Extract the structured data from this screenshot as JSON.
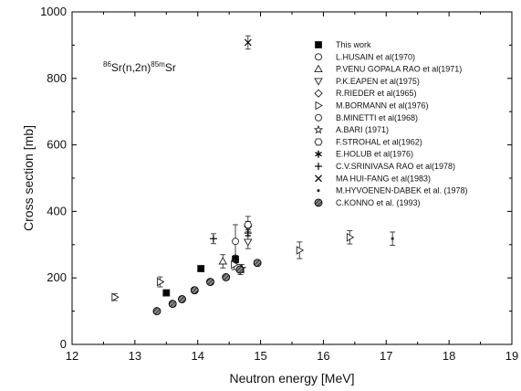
{
  "chart_data": {
    "type": "scatter",
    "title": "",
    "xlabel": "Neutron energy [MeV]",
    "ylabel": "Cross section [mb]",
    "xlim": [
      12,
      19
    ],
    "ylim": [
      0,
      1000
    ],
    "xticks": [
      12,
      13,
      14,
      15,
      16,
      17,
      18,
      19
    ],
    "xtick_labels": [
      "12",
      "13",
      "14",
      "15",
      "16",
      "17",
      "18",
      "19"
    ],
    "yticks": [
      0,
      200,
      400,
      600,
      800,
      1000
    ],
    "ytick_labels": [
      "0",
      "200",
      "400",
      "600",
      "800",
      "1000"
    ],
    "grid": false,
    "legend_position": "top-right",
    "annotation": {
      "mass_a": "86",
      "mass_b": "85m",
      "reaction_a": "Sr(n,2n)",
      "reaction_b": "Sr"
    },
    "series": [
      {
        "name": "This work",
        "marker": "filled-square",
        "points": [
          {
            "x": 13.5,
            "y": 155,
            "err": 5
          },
          {
            "x": 14.05,
            "y": 228,
            "err": 8
          },
          {
            "x": 14.6,
            "y": 255,
            "err": 10
          }
        ]
      },
      {
        "name": "L.HUSAIN et al(1970)",
        "marker": "circle",
        "points": [
          {
            "x": 14.68,
            "y": 225,
            "err": 15
          }
        ]
      },
      {
        "name": "P.VENU GOPALA RAO et al(1971)",
        "marker": "triangle-up",
        "points": [
          {
            "x": 14.4,
            "y": 250,
            "err": 20
          }
        ]
      },
      {
        "name": "P.K.EAPEN et al(1975)",
        "marker": "triangle-down",
        "points": [
          {
            "x": 14.8,
            "y": 308,
            "err": 20
          }
        ]
      },
      {
        "name": "R.RIEDER et al(1965)",
        "marker": "diamond",
        "points": [
          {
            "x": 14.8,
            "y": 355,
            "err": 15
          }
        ]
      },
      {
        "name": "M.BORMANN et al(1976)",
        "marker": "triangle-right",
        "points": [
          {
            "x": 12.68,
            "y": 142,
            "err": 10
          },
          {
            "x": 13.4,
            "y": 188,
            "err": 15
          },
          {
            "x": 14.58,
            "y": 240,
            "err": 15
          },
          {
            "x": 15.62,
            "y": 283,
            "err": 25
          },
          {
            "x": 16.42,
            "y": 322,
            "err": 20
          }
        ]
      },
      {
        "name": "B.MINETTI et al(1968)",
        "marker": "circle",
        "points": [
          {
            "x": 14.6,
            "y": 310,
            "err": 50
          }
        ]
      },
      {
        "name": "A.BARI (1971)",
        "marker": "star",
        "points": [
          {
            "x": 14.7,
            "y": 228,
            "err": 12
          }
        ]
      },
      {
        "name": "F.STROHAL et al(1962)",
        "marker": "hexagon",
        "points": [
          {
            "x": 14.8,
            "y": 360,
            "err": 25
          }
        ]
      },
      {
        "name": "E.HOLUB et al(1976)",
        "marker": "asterisk",
        "points": [
          {
            "x": 14.6,
            "y": 260,
            "err": 8
          }
        ]
      },
      {
        "name": "C.V.SRINIVASA RAO et al(1978)",
        "marker": "plus",
        "points": [
          {
            "x": 14.25,
            "y": 318,
            "err": 15
          },
          {
            "x": 14.8,
            "y": 335,
            "err": 10
          }
        ]
      },
      {
        "name": "MA HUI-FANG et al(1983)",
        "marker": "x",
        "points": [
          {
            "x": 14.8,
            "y": 908,
            "err": 20
          }
        ]
      },
      {
        "name": "M.HYVOENEN-DABEK et al. (1978)",
        "marker": "small-dot",
        "points": [
          {
            "x": 17.1,
            "y": 318,
            "err": 20
          }
        ]
      },
      {
        "name": "C.KONNO et al. (1993)",
        "marker": "hatched-circle",
        "points": [
          {
            "x": 13.35,
            "y": 100,
            "err": 6
          },
          {
            "x": 13.6,
            "y": 122,
            "err": 5
          },
          {
            "x": 13.75,
            "y": 136,
            "err": 5
          },
          {
            "x": 13.95,
            "y": 163,
            "err": 5
          },
          {
            "x": 14.2,
            "y": 188,
            "err": 5
          },
          {
            "x": 14.45,
            "y": 202,
            "err": 5
          },
          {
            "x": 14.67,
            "y": 225,
            "err": 5
          },
          {
            "x": 14.95,
            "y": 245,
            "err": 6
          }
        ]
      }
    ]
  }
}
